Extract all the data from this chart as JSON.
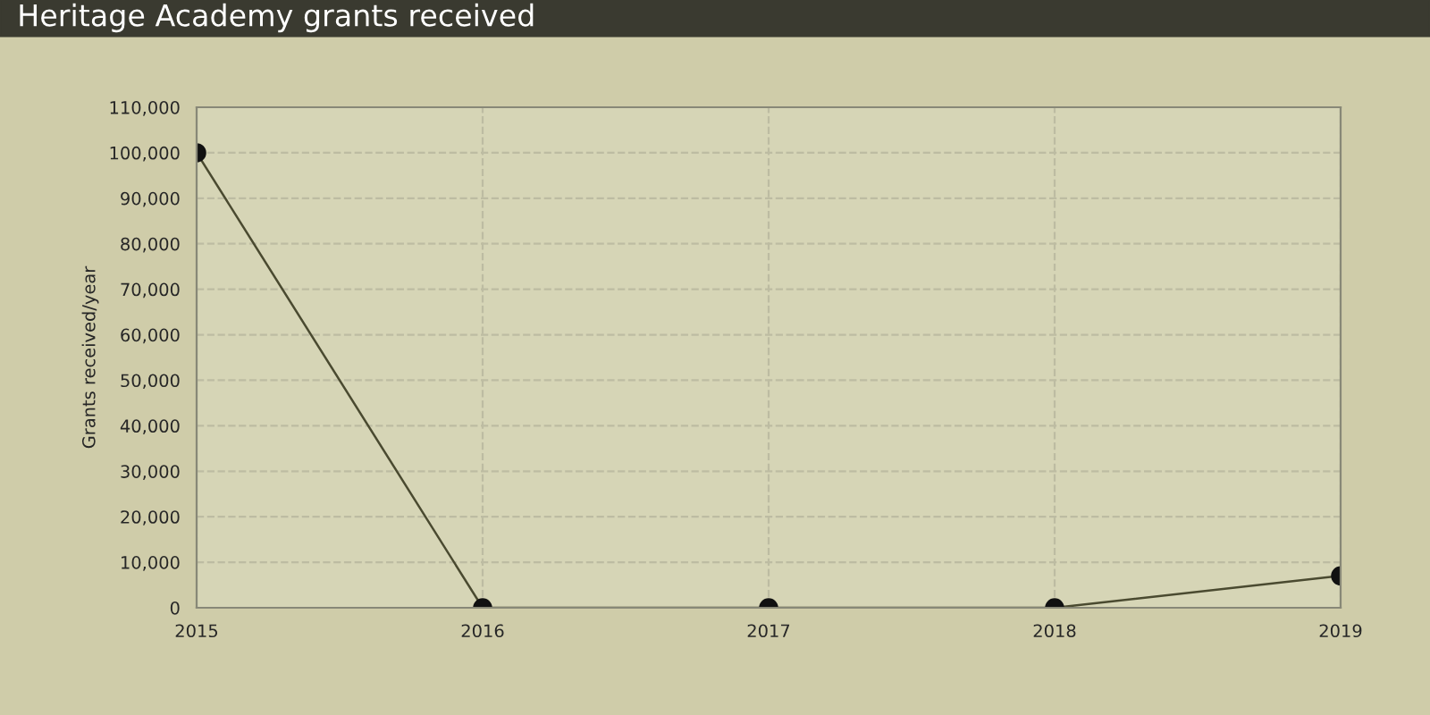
{
  "chart_data": {
    "type": "line",
    "title": "Heritage Academy grants received",
    "ylabel": "Grants received/year",
    "x": [
      2015,
      2016,
      2017,
      2018,
      2019
    ],
    "series": [
      {
        "color": "#4a4a30",
        "values": [
          100000,
          0,
          0,
          0,
          7000
        ]
      }
    ],
    "xlim": [
      2015,
      2019
    ],
    "xticks": [
      2015,
      2016,
      2017,
      2018,
      2019
    ],
    "ylim": [
      0,
      110000
    ],
    "yticks": [
      {
        "value": 0,
        "label": "0"
      },
      {
        "value": 10000,
        "label": "10,000"
      },
      {
        "value": 20000,
        "label": "20,000"
      },
      {
        "value": 30000,
        "label": "30,000"
      },
      {
        "value": 40000,
        "label": "40,000"
      },
      {
        "value": 50000,
        "label": "50,000"
      },
      {
        "value": 60000,
        "label": "60,000"
      },
      {
        "value": 70000,
        "label": "70,000"
      },
      {
        "value": 80000,
        "label": "80,000"
      },
      {
        "value": 90000,
        "label": "90,000"
      },
      {
        "value": 100000,
        "label": "100,000"
      },
      {
        "value": 110000,
        "label": "110,000"
      }
    ],
    "grid": true,
    "marker": "circle",
    "line_style": "solid",
    "legend": false
  }
}
